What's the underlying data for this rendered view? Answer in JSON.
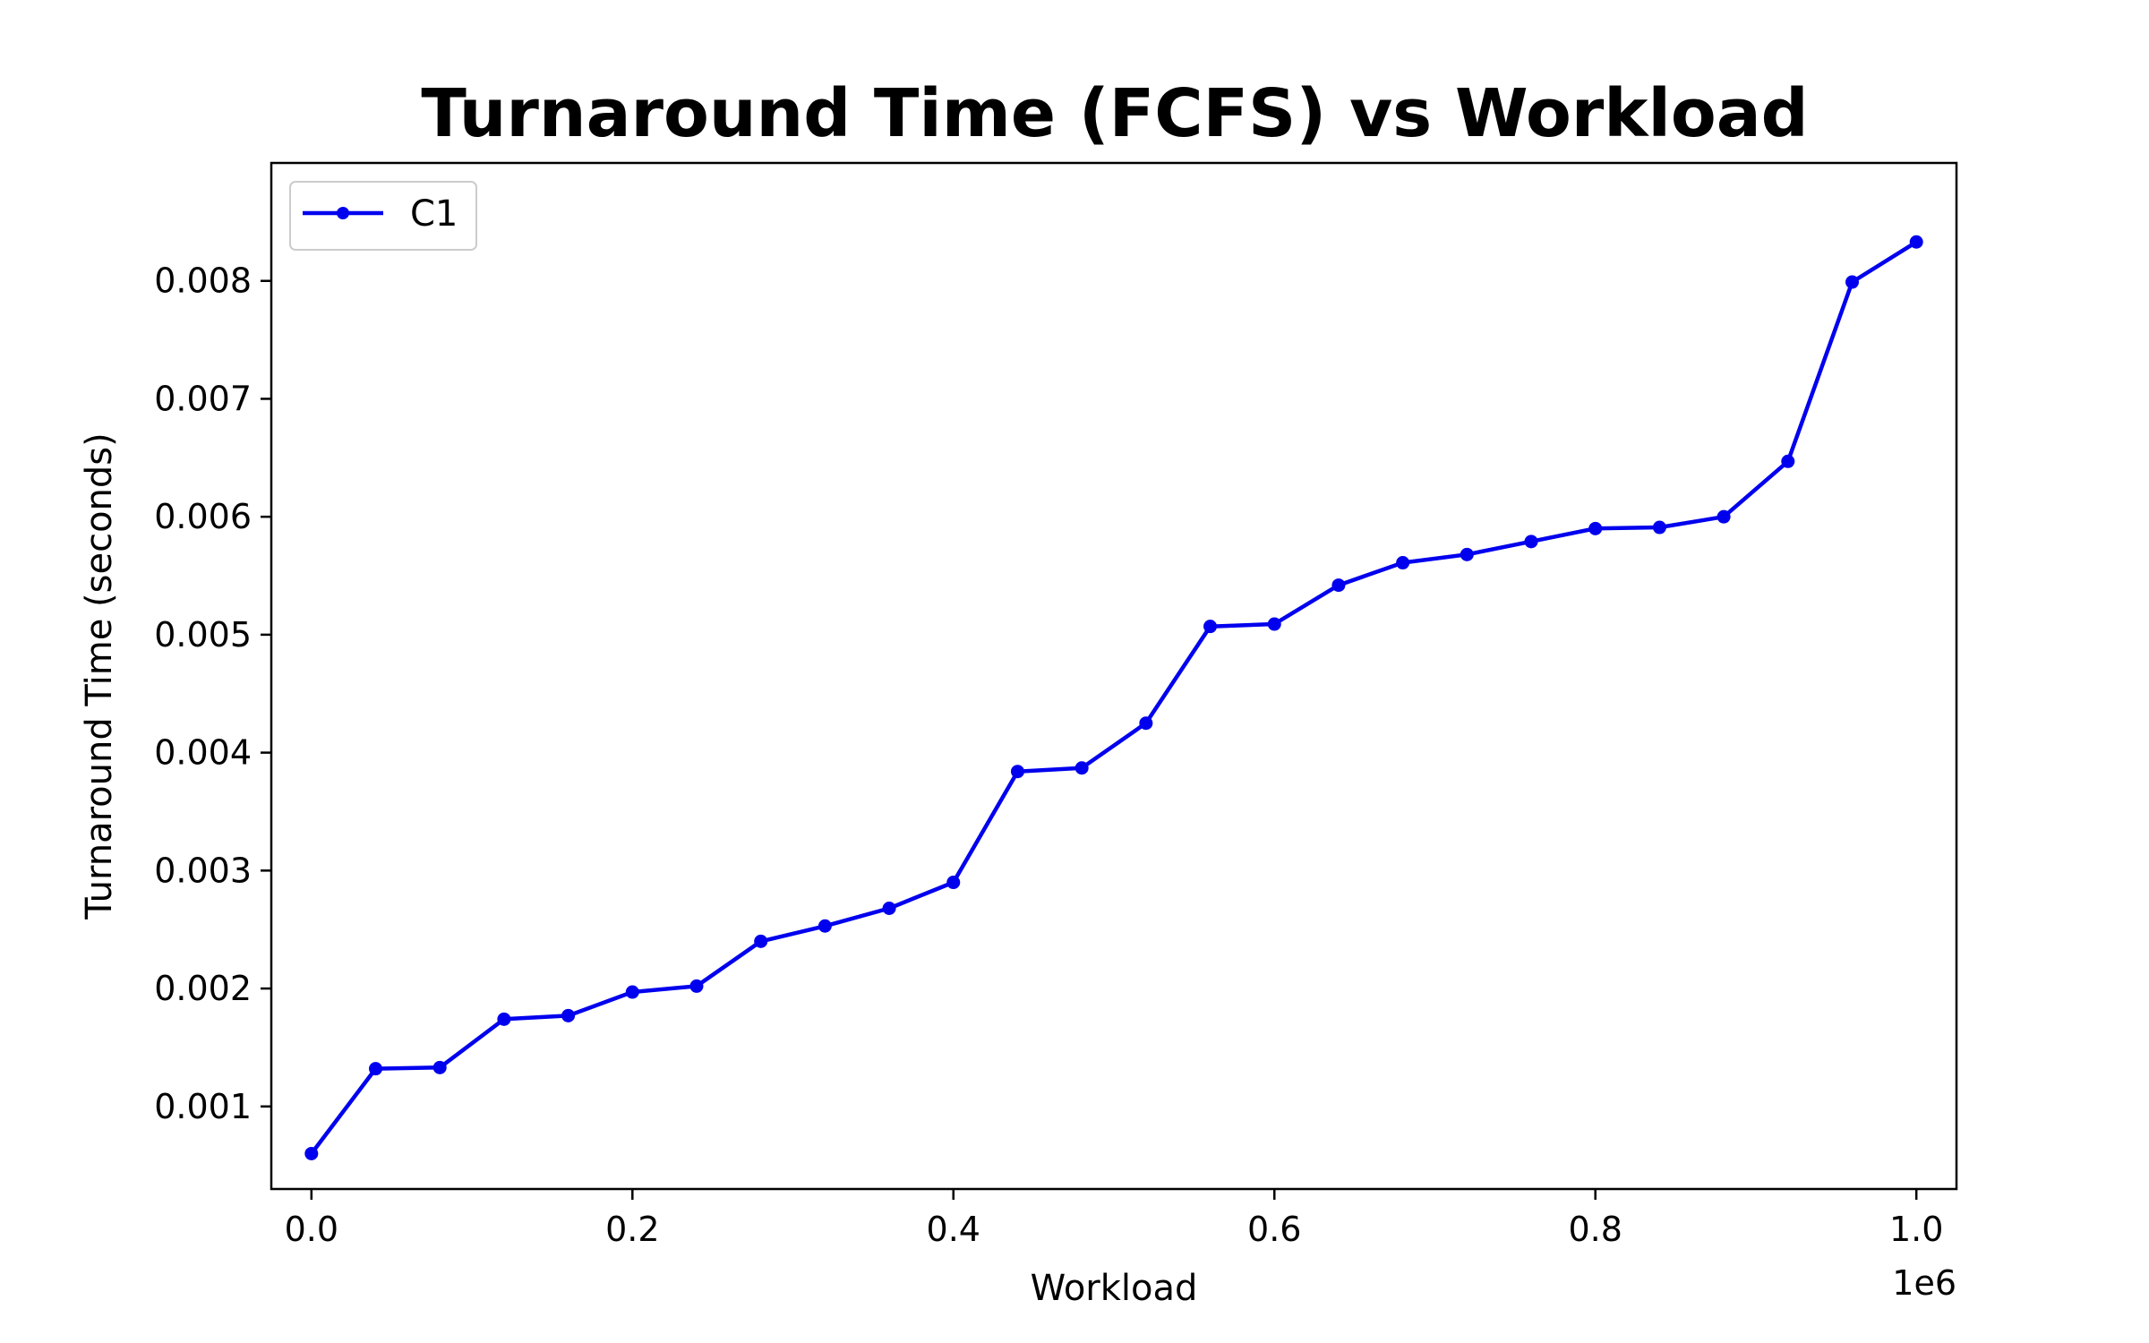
{
  "chart_data": {
    "type": "line",
    "title": "Turnaround Time (FCFS) vs Workload",
    "xlabel": "Workload",
    "ylabel": "Turnaround Time (seconds)",
    "x_offset_label": "1e6",
    "xlim": [
      -25000,
      1025000
    ],
    "ylim": [
      0.0003,
      0.009
    ],
    "x_ticks": [
      0,
      200000,
      400000,
      600000,
      800000,
      1000000
    ],
    "x_tick_labels": [
      "0.0",
      "0.2",
      "0.4",
      "0.6",
      "0.8",
      "1.0"
    ],
    "y_ticks": [
      0.001,
      0.002,
      0.003,
      0.004,
      0.005,
      0.006,
      0.007,
      0.008
    ],
    "y_tick_labels": [
      "0.001",
      "0.002",
      "0.003",
      "0.004",
      "0.005",
      "0.006",
      "0.007",
      "0.008"
    ],
    "grid": false,
    "legend_position": "top-left",
    "x": [
      0,
      40000,
      80000,
      120000,
      160000,
      200000,
      240000,
      280000,
      320000,
      360000,
      400000,
      440000,
      480000,
      520000,
      560000,
      600000,
      640000,
      680000,
      720000,
      760000,
      800000,
      840000,
      880000,
      920000,
      960000,
      1000000
    ],
    "series": [
      {
        "name": "C1",
        "color": "#0000ee",
        "values": [
          0.0006,
          0.00132,
          0.00133,
          0.00174,
          0.00177,
          0.00197,
          0.00202,
          0.0024,
          0.00253,
          0.00268,
          0.0029,
          0.00384,
          0.00387,
          0.00425,
          0.00507,
          0.00509,
          0.00542,
          0.00561,
          0.00568,
          0.00579,
          0.0059,
          0.00591,
          0.006,
          0.00647,
          0.00799,
          0.00833
        ]
      }
    ]
  }
}
